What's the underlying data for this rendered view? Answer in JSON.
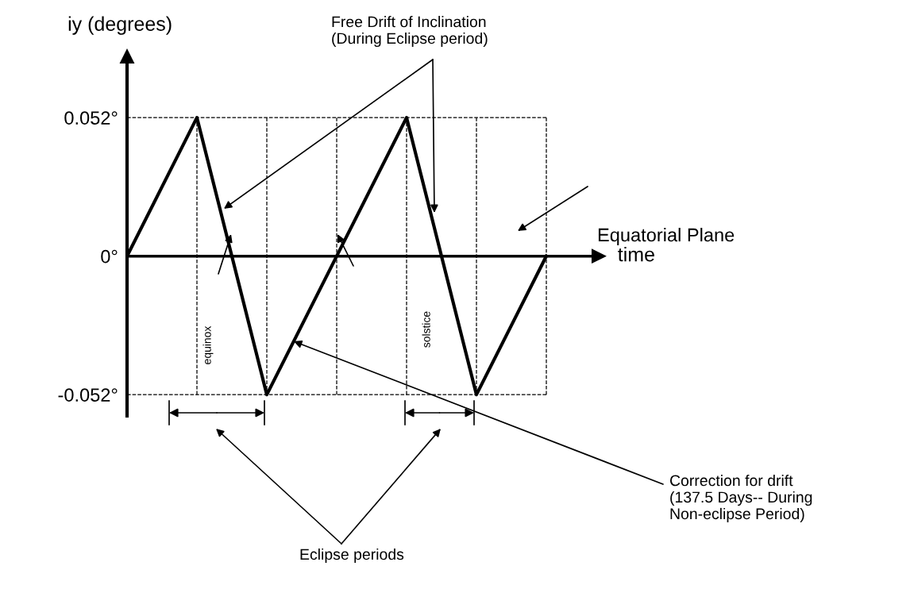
{
  "chart_data": {
    "type": "line",
    "categories": [
      null,
      null,
      null,
      null,
      null,
      null,
      null,
      null,
      null,
      null,
      null,
      null,
      null
    ],
    "values": [
      0,
      0.026,
      0.052,
      0,
      -0.052,
      -0.026,
      0,
      0.026,
      0.052,
      0,
      -0.052,
      -0.026,
      0
    ],
    "color": "#000000",
    "ylim": [
      -0.06,
      0.075
    ],
    "yticks": [
      {
        "value": -0.052,
        "label": "-0.052°"
      },
      {
        "value": 0,
        "label": "0°"
      },
      {
        "value": 0.052,
        "label": "0.052°"
      }
    ],
    "ylabel": "iy (degrees)",
    "xlabel": "time",
    "grid": true,
    "legend": false,
    "marker": "none",
    "line_style": "solid",
    "annotations": [
      "Free Drift of Inclination\n(During Eclipse period)",
      "Equatorial Plane",
      "equinox",
      "solstice",
      "Correction for drift\n(137.5 Days-- During\nNon-eclipse Period)",
      "Eclipse periods"
    ]
  }
}
